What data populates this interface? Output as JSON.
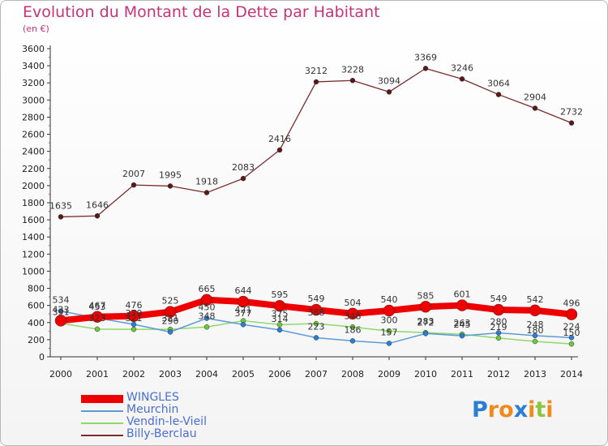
{
  "title": "Evolution du Montant de la Dette par Habitant",
  "subtitle": "(en €)",
  "chart_data": {
    "type": "line",
    "title": "Evolution du Montant de la Dette par Habitant",
    "subtitle": "(en €)",
    "xlabel": "",
    "ylabel": "",
    "x": [
      2000,
      2001,
      2002,
      2003,
      2004,
      2005,
      2006,
      2007,
      2008,
      2009,
      2010,
      2011,
      2012,
      2013,
      2014
    ],
    "ylim": [
      0,
      3600
    ],
    "yticks": [
      0,
      200,
      400,
      600,
      800,
      1000,
      1200,
      1400,
      1600,
      1800,
      2000,
      2200,
      2400,
      2600,
      2800,
      3000,
      3200,
      3400,
      3600
    ],
    "grid": false,
    "legend_position": "bottom-left",
    "series": [
      {
        "name": "WINGLES",
        "color": "#ee0000",
        "values": [
          423,
          467,
          476,
          525,
          665,
          644,
          595,
          549,
          504,
          540,
          585,
          601,
          549,
          542,
          496
        ],
        "labels": [
          "423",
          "467",
          "476",
          "525",
          "665",
          "644",
          "595",
          "549",
          "504",
          "540",
          "585",
          "601",
          "549",
          "542",
          "496"
        ]
      },
      {
        "name": "Meurchin",
        "color": "#5b9bd5",
        "values": [
          534,
          453,
          379,
          290,
          450,
          377,
          314,
          223,
          186,
          157,
          272,
          245,
          280,
          248,
          224
        ],
        "labels": [
          "534",
          "453",
          "379",
          "290",
          "450",
          "377",
          "314",
          "223",
          "186",
          "157",
          "272",
          "245",
          "280",
          "248",
          "224"
        ]
      },
      {
        "name": "Vendin-le-Vieil",
        "color": "#8fd86a",
        "values": [
          391,
          323,
          321,
          321,
          348,
          421,
          375,
          388,
          348,
          300,
          283,
          263,
          219,
          180,
          150
        ],
        "labels": [
          "391",
          "323",
          "321",
          "321",
          "348",
          "421",
          "375",
          "388",
          "348",
          "300",
          "283",
          "263",
          "219",
          "180",
          "150"
        ]
      },
      {
        "name": "Billy-Berclau",
        "color": "#7a2c2c",
        "values": [
          1635,
          1646,
          2007,
          1995,
          1918,
          2083,
          2416,
          3212,
          3228,
          3094,
          3369,
          3246,
          3064,
          2904,
          2732
        ],
        "labels": [
          "1635",
          "1646",
          "2007",
          "1995",
          "1918",
          "2083",
          "2416",
          "3212",
          "3228",
          "3094",
          "3369",
          "3246",
          "3064",
          "2904",
          "2732"
        ]
      }
    ]
  },
  "legend": [
    {
      "label": "WINGLES",
      "color": "#ee0000"
    },
    {
      "label": "Meurchin",
      "color": "#5b9bd5"
    },
    {
      "label": "Vendin-le-Vieil",
      "color": "#8fd86a"
    },
    {
      "label": "Billy-Berclau",
      "color": "#7a2c2c"
    }
  ],
  "logo": {
    "letters": [
      "P",
      "r",
      "o",
      "x",
      "i",
      "t",
      "i"
    ],
    "colors": [
      "#2a7fd4",
      "#f08a1c",
      "#f08a1c",
      "#2a7fd4",
      "#f08a1c",
      "#8cc63f",
      "#f08a1c"
    ]
  }
}
